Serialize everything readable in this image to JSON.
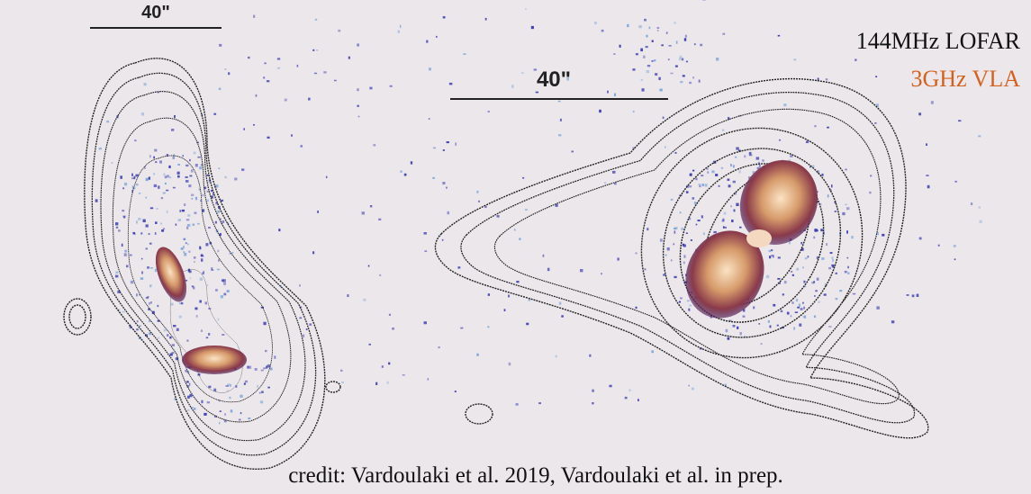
{
  "scale_bars": [
    {
      "label": "40\""
    },
    {
      "label": "40\""
    }
  ],
  "legend": {
    "lofar": "144MHz LOFAR",
    "vla": "3GHz VLA"
  },
  "credit": "credit: Vardoulaki et al. 2019, Vardoulaki et al. in prep."
}
